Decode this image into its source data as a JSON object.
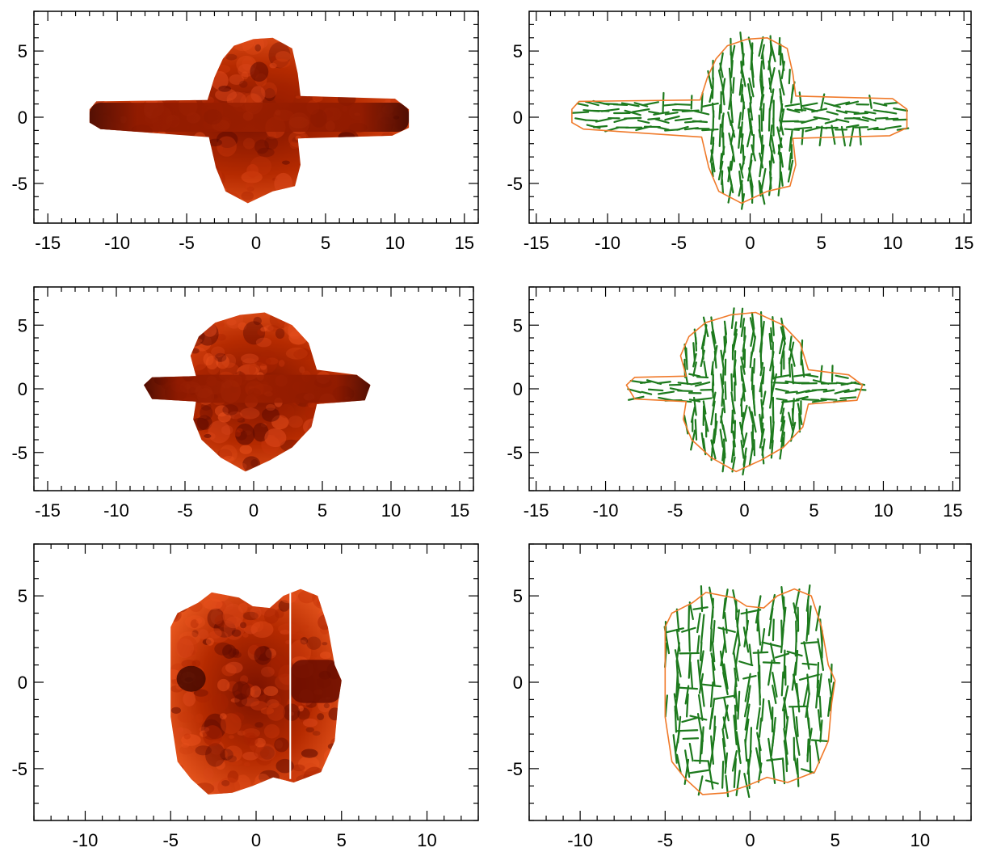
{
  "figure": {
    "panels": [
      {
        "name": "panel-row1-left",
        "kind": "rendering",
        "xlim": [
          -16,
          16
        ],
        "ylim": [
          -8,
          8
        ],
        "xticks": [
          -15,
          -10,
          -5,
          0,
          5,
          10,
          15
        ],
        "xtick_labels": [
          "-15",
          "-10",
          "-5",
          "0",
          "5",
          "10",
          "15"
        ],
        "yticks": [
          5,
          0,
          -5
        ],
        "ytick_labels": [
          "5",
          "0",
          "-5"
        ],
        "shape": "cross-horizontal-lobes",
        "extent": {
          "x": [
            -12,
            11
          ],
          "y": [
            -6.5,
            6
          ]
        },
        "colors": {
          "dark": "#5e0a00",
          "mid": "#a82200",
          "light": "#e8501c"
        }
      },
      {
        "name": "panel-row1-right",
        "kind": "vector-field",
        "xlim": [
          -15.5,
          15.5
        ],
        "ylim": [
          -8,
          8
        ],
        "xticks": [
          -15,
          -10,
          -5,
          0,
          5,
          10,
          15
        ],
        "xtick_labels": [
          "-15",
          "-10",
          "-5",
          "0",
          "5",
          "10",
          "15"
        ],
        "yticks": [
          5,
          0,
          -5
        ],
        "ytick_labels": [
          "5",
          "0",
          "-5"
        ],
        "shape": "cross",
        "extent": {
          "x": [
            -12.5,
            11
          ],
          "y": [
            -6.5,
            6
          ]
        },
        "colors": {
          "outline": "#f07a2a",
          "vectors": "#1d7a1d"
        }
      },
      {
        "name": "panel-row2-left",
        "kind": "rendering",
        "xlim": [
          -16,
          16
        ],
        "ylim": [
          -8,
          8
        ],
        "xticks": [
          -15,
          -10,
          -5,
          0,
          5,
          10,
          15
        ],
        "xtick_labels": [
          "-15",
          "-10",
          "-5",
          "0",
          "5",
          "10",
          "15"
        ],
        "yticks": [
          5,
          0,
          -5
        ],
        "ytick_labels": [
          "5",
          "0",
          "-5"
        ],
        "shape": "cross-compact",
        "extent": {
          "x": [
            -8,
            8.5
          ],
          "y": [
            -6.5,
            6
          ]
        },
        "colors": {
          "dark": "#5e0a00",
          "mid": "#a82200",
          "light": "#e8501c"
        }
      },
      {
        "name": "panel-row2-right",
        "kind": "vector-field",
        "xlim": [
          -15.5,
          15.5
        ],
        "ylim": [
          -8,
          8
        ],
        "xticks": [
          -15,
          -10,
          -5,
          0,
          5,
          10,
          15
        ],
        "xtick_labels": [
          "-15",
          "-10",
          "-5",
          "0",
          "5",
          "10",
          "15"
        ],
        "yticks": [
          5,
          0,
          -5
        ],
        "ytick_labels": [
          "5",
          "0",
          "-5"
        ],
        "shape": "cross-compact",
        "extent": {
          "x": [
            -8.5,
            8.5
          ],
          "y": [
            -6.5,
            6
          ]
        },
        "colors": {
          "outline": "#f07a2a",
          "vectors": "#1d7a1d"
        }
      },
      {
        "name": "panel-row3-left",
        "kind": "rendering",
        "xlim": [
          -13,
          13
        ],
        "ylim": [
          -8,
          8
        ],
        "xticks": [
          -10,
          -5,
          0,
          5,
          10
        ],
        "xtick_labels": [
          "-10",
          "-5",
          "0",
          "5",
          "10"
        ],
        "yticks": [
          5,
          0,
          -5
        ],
        "ytick_labels": [
          "5",
          "0",
          "-5"
        ],
        "shape": "block",
        "extent": {
          "x": [
            -5,
            5
          ],
          "y": [
            -6.5,
            6
          ]
        },
        "colors": {
          "dark": "#5e0a00",
          "mid": "#a82200",
          "light": "#e8501c"
        }
      },
      {
        "name": "panel-row3-right",
        "kind": "vector-field",
        "xlim": [
          -13,
          13
        ],
        "ylim": [
          -8,
          8
        ],
        "xticks": [
          -10,
          -5,
          0,
          5,
          10
        ],
        "xtick_labels": [
          "-10",
          "-5",
          "0",
          "5",
          "10"
        ],
        "yticks": [
          5,
          0,
          -5
        ],
        "ytick_labels": [
          "5",
          "0",
          "-5"
        ],
        "shape": "block",
        "extent": {
          "x": [
            -5,
            5
          ],
          "y": [
            -6.5,
            6
          ]
        },
        "colors": {
          "outline": "#f07a2a",
          "vectors": "#1d7a1d"
        }
      }
    ]
  }
}
